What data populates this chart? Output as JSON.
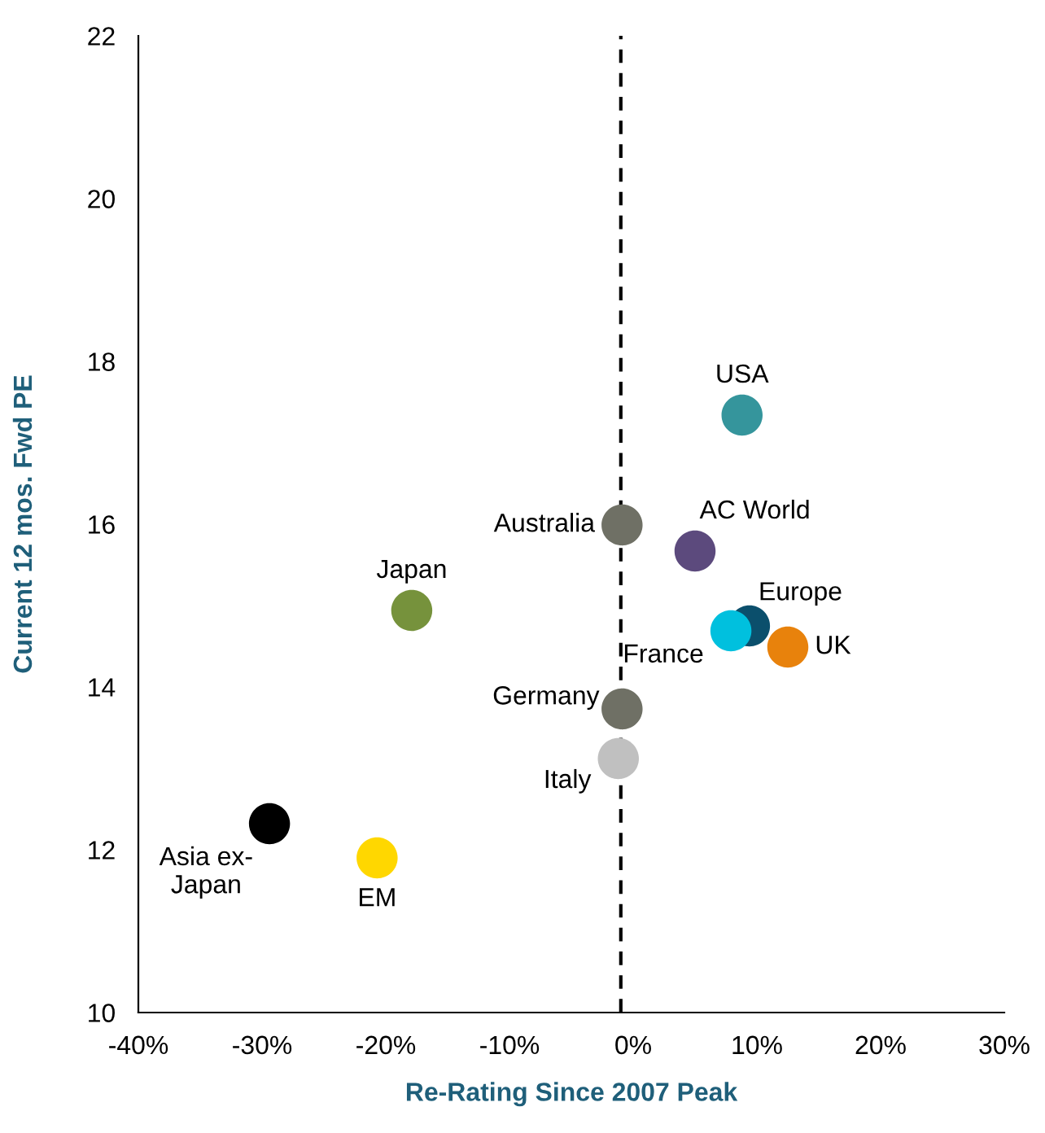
{
  "chart_data": {
    "type": "scatter",
    "xlabel": "Re-Rating Since 2007 Peak",
    "ylabel": "Current 12 mos. Fwd PE",
    "xlim": [
      -40,
      30
    ],
    "ylim": [
      10,
      22
    ],
    "xticks": [
      {
        "value": -40,
        "label": "-40%"
      },
      {
        "value": -30,
        "label": "-30%"
      },
      {
        "value": -20,
        "label": "-20%"
      },
      {
        "value": -10,
        "label": "-10%"
      },
      {
        "value": 0,
        "label": "0%"
      },
      {
        "value": 10,
        "label": "10%"
      },
      {
        "value": 20,
        "label": "20%"
      },
      {
        "value": 30,
        "label": "30%"
      }
    ],
    "yticks": [
      10,
      12,
      14,
      16,
      18,
      20,
      22
    ],
    "grid": false,
    "legend": false,
    "marker": "circle",
    "ref_lines": [
      {
        "axis": "x",
        "value": -1,
        "color": "#000000",
        "line_style": "dashed"
      }
    ],
    "series": [
      {
        "name": "USA",
        "color": "#35959c",
        "x": [
          8.8
        ],
        "values": [
          17.34
        ]
      },
      {
        "name": "AC World",
        "color": "#5c4a7d",
        "x": [
          5.0
        ],
        "values": [
          15.67
        ]
      },
      {
        "name": "Australia",
        "color": "#6f7065",
        "x": [
          -0.9
        ],
        "values": [
          15.99
        ]
      },
      {
        "name": "Japan",
        "color": "#76923c",
        "x": [
          -17.9
        ],
        "values": [
          14.94
        ]
      },
      {
        "name": "Europe",
        "color": "#0b4f6c",
        "x": [
          9.4
        ],
        "values": [
          14.75
        ]
      },
      {
        "name": "France",
        "color": "#00c0de",
        "x": [
          7.9
        ],
        "values": [
          14.69
        ]
      },
      {
        "name": "UK",
        "color": "#e8820c",
        "x": [
          12.5
        ],
        "values": [
          14.49
        ]
      },
      {
        "name": "Germany",
        "color": "#6f7065",
        "x": [
          -0.9
        ],
        "values": [
          13.73
        ]
      },
      {
        "name": "Italy",
        "color": "#c0c0c0",
        "x": [
          -1.2
        ],
        "values": [
          13.12
        ]
      },
      {
        "name": "Asia ex-\nJapan",
        "color": "#000000",
        "x": [
          -29.4
        ],
        "values": [
          12.32
        ]
      },
      {
        "name": "EM",
        "color": "#ffd700",
        "x": [
          -20.7
        ],
        "values": [
          11.9
        ]
      }
    ]
  }
}
